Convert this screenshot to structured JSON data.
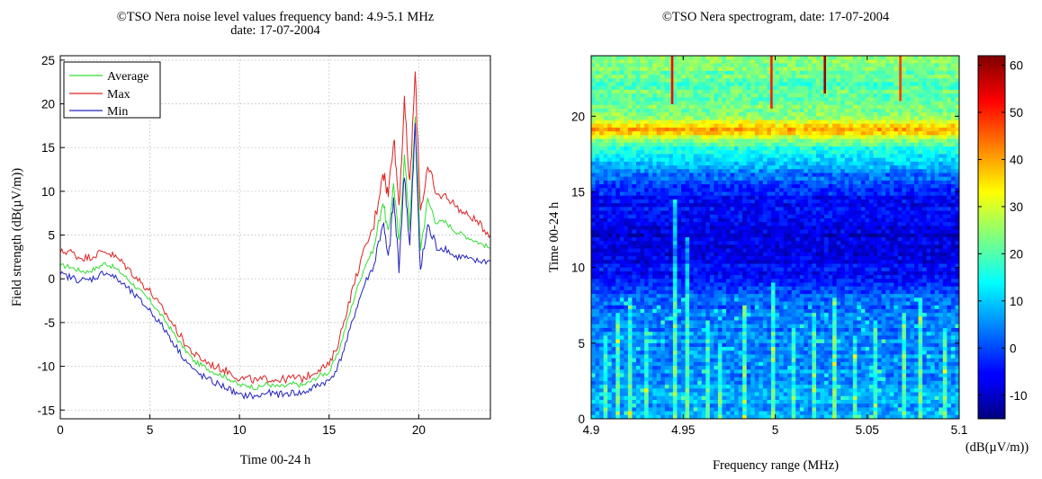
{
  "chart_data": [
    {
      "type": "line",
      "title": "©TSO Nera noise level values frequency band: 4.9-5.1 MHz",
      "subtitle": "date: 17-07-2004",
      "xlabel": "Time 00-24 h",
      "ylabel": "Field strength (dB(µV/m))",
      "xlim": [
        0,
        24
      ],
      "ylim": [
        -16,
        25.5
      ],
      "xticks": [
        "0",
        "5",
        "10",
        "15",
        "20"
      ],
      "yticks": [
        "-15",
        "-10",
        "-5",
        "0",
        "5",
        "10",
        "15",
        "20",
        "25"
      ],
      "grid": true,
      "legend_position": "top-left",
      "x": [
        0,
        0.5,
        1,
        1.5,
        2,
        2.5,
        3,
        3.5,
        4,
        4.5,
        5,
        5.5,
        6,
        6.5,
        7,
        7.5,
        8,
        8.5,
        9,
        9.5,
        10,
        10.5,
        11,
        11.5,
        12,
        12.5,
        13,
        13.5,
        14,
        14.5,
        15,
        15.5,
        16,
        16.5,
        17,
        17.5,
        18,
        18.3,
        18.6,
        18.9,
        19.2,
        19.5,
        19.8,
        20.1,
        20.5,
        21,
        21.5,
        22,
        22.5,
        23,
        23.5,
        24
      ],
      "series": [
        {
          "name": "Average",
          "color": "#33dd33",
          "values": [
            1.5,
            1.4,
            1.0,
            0.8,
            1.2,
            1.8,
            1.3,
            0.5,
            -0.5,
            -1.5,
            -2.5,
            -3.8,
            -5.2,
            -6.8,
            -8.2,
            -9.5,
            -10.0,
            -10.6,
            -11.0,
            -11.5,
            -12.2,
            -12.2,
            -12.5,
            -12.0,
            -12.3,
            -12.3,
            -12.0,
            -12.2,
            -11.7,
            -11.0,
            -10.7,
            -8.5,
            -5.0,
            -1.5,
            1.5,
            3.5,
            9.0,
            5.0,
            11.0,
            4.0,
            14.0,
            6.0,
            18.5,
            3.5,
            9.0,
            6.5,
            6.5,
            5.5,
            5.0,
            4.5,
            4.0,
            3.5
          ]
        },
        {
          "name": "Max",
          "color": "#dd2222",
          "values": [
            3.0,
            3.2,
            2.5,
            2.4,
            2.8,
            3.2,
            2.6,
            1.8,
            0.7,
            -0.4,
            -1.4,
            -2.9,
            -4.3,
            -5.9,
            -7.5,
            -8.7,
            -9.3,
            -9.9,
            -10.3,
            -10.7,
            -11.4,
            -11.4,
            -11.7,
            -11.4,
            -11.5,
            -11.5,
            -11.3,
            -11.4,
            -10.9,
            -10.2,
            -9.9,
            -7.4,
            -3.5,
            0.2,
            3.5,
            6.0,
            12.5,
            9.5,
            16.5,
            8.5,
            20.0,
            10.5,
            23.5,
            8.0,
            12.5,
            9.5,
            9.5,
            8.5,
            7.5,
            7.0,
            6.0,
            5.0
          ]
        },
        {
          "name": "Min",
          "color": "#2222bb",
          "values": [
            0.5,
            0.2,
            -0.1,
            -0.2,
            0.2,
            0.8,
            0.2,
            -0.6,
            -1.6,
            -2.6,
            -3.6,
            -4.9,
            -6.3,
            -7.9,
            -9.3,
            -10.6,
            -11.2,
            -11.8,
            -12.2,
            -12.7,
            -13.4,
            -13.3,
            -13.5,
            -13.0,
            -13.2,
            -13.2,
            -13.0,
            -13.1,
            -12.6,
            -12.0,
            -11.7,
            -10.0,
            -7.0,
            -3.5,
            -0.5,
            1.5,
            6.5,
            2.0,
            9.0,
            1.5,
            12.0,
            3.5,
            17.5,
            1.0,
            6.0,
            3.5,
            3.5,
            2.5,
            2.5,
            2.0,
            2.0,
            2.0
          ]
        }
      ]
    },
    {
      "type": "heatmap",
      "title": "©TSO Nera spectrogram, date: 17-07-2004",
      "xlabel": "Frequency range (MHz)",
      "ylabel": "Time 00-24 h",
      "xlim": [
        4.9,
        5.1
      ],
      "ylim": [
        0,
        24
      ],
      "xticks": [
        "4.9",
        "4.95",
        "5",
        "5.05",
        "5.1"
      ],
      "yticks": [
        "0",
        "5",
        "10",
        "15",
        "20"
      ],
      "colorbar": {
        "label": "(dB(µV/m))",
        "range": [
          -15,
          62
        ],
        "ticks": [
          "-10",
          "0",
          "10",
          "20",
          "30",
          "40",
          "50",
          "60"
        ]
      },
      "time_profile_dB": {
        "time_h": [
          0,
          2,
          4,
          6,
          8,
          9,
          10,
          11,
          12,
          13,
          14,
          15,
          16,
          17,
          18,
          18.5,
          19,
          19.5,
          20,
          21,
          22,
          23,
          24
        ],
        "level": [
          8,
          6,
          5,
          4,
          2,
          -2,
          -6,
          -7,
          -8,
          -7,
          -6,
          -3,
          2,
          9,
          17,
          25,
          42,
          35,
          25,
          22,
          20,
          22,
          25
        ]
      },
      "vertical_lines": [
        {
          "freq_mhz": 4.907,
          "tmax_h": 5.5,
          "boost_dB": 12
        },
        {
          "freq_mhz": 4.913,
          "tmax_h": 7,
          "boost_dB": 14
        },
        {
          "freq_mhz": 4.921,
          "tmax_h": 8,
          "boost_dB": 13
        },
        {
          "freq_mhz": 4.928,
          "tmax_h": 6,
          "boost_dB": 11
        },
        {
          "freq_mhz": 4.944,
          "tmax_h": 14.5,
          "boost_dB": 16
        },
        {
          "freq_mhz": 4.952,
          "tmax_h": 12,
          "boost_dB": 14
        },
        {
          "freq_mhz": 4.962,
          "tmax_h": 6.5,
          "boost_dB": 12
        },
        {
          "freq_mhz": 4.97,
          "tmax_h": 5,
          "boost_dB": 11
        },
        {
          "freq_mhz": 4.983,
          "tmax_h": 7.5,
          "boost_dB": 13
        },
        {
          "freq_mhz": 4.998,
          "tmax_h": 9,
          "boost_dB": 14
        },
        {
          "freq_mhz": 5.008,
          "tmax_h": 6,
          "boost_dB": 12
        },
        {
          "freq_mhz": 5.02,
          "tmax_h": 7,
          "boost_dB": 13
        },
        {
          "freq_mhz": 5.03,
          "tmax_h": 8,
          "boost_dB": 16
        },
        {
          "freq_mhz": 5.043,
          "tmax_h": 5.5,
          "boost_dB": 12
        },
        {
          "freq_mhz": 5.053,
          "tmax_h": 6.5,
          "boost_dB": 13
        },
        {
          "freq_mhz": 5.068,
          "tmax_h": 7,
          "boost_dB": 14
        },
        {
          "freq_mhz": 5.078,
          "tmax_h": 8,
          "boost_dB": 15
        },
        {
          "freq_mhz": 5.09,
          "tmax_h": 6,
          "boost_dB": 13
        }
      ],
      "top_spikes": [
        {
          "freq_mhz": 4.944,
          "t_from_h": 20.8,
          "t_to_h": 24,
          "level_dB": 52
        },
        {
          "freq_mhz": 4.998,
          "t_from_h": 20.5,
          "t_to_h": 24,
          "level_dB": 50
        },
        {
          "freq_mhz": 5.027,
          "t_from_h": 21.5,
          "t_to_h": 24,
          "level_dB": 60
        },
        {
          "freq_mhz": 5.068,
          "t_from_h": 21,
          "t_to_h": 24,
          "level_dB": 48
        }
      ]
    }
  ]
}
